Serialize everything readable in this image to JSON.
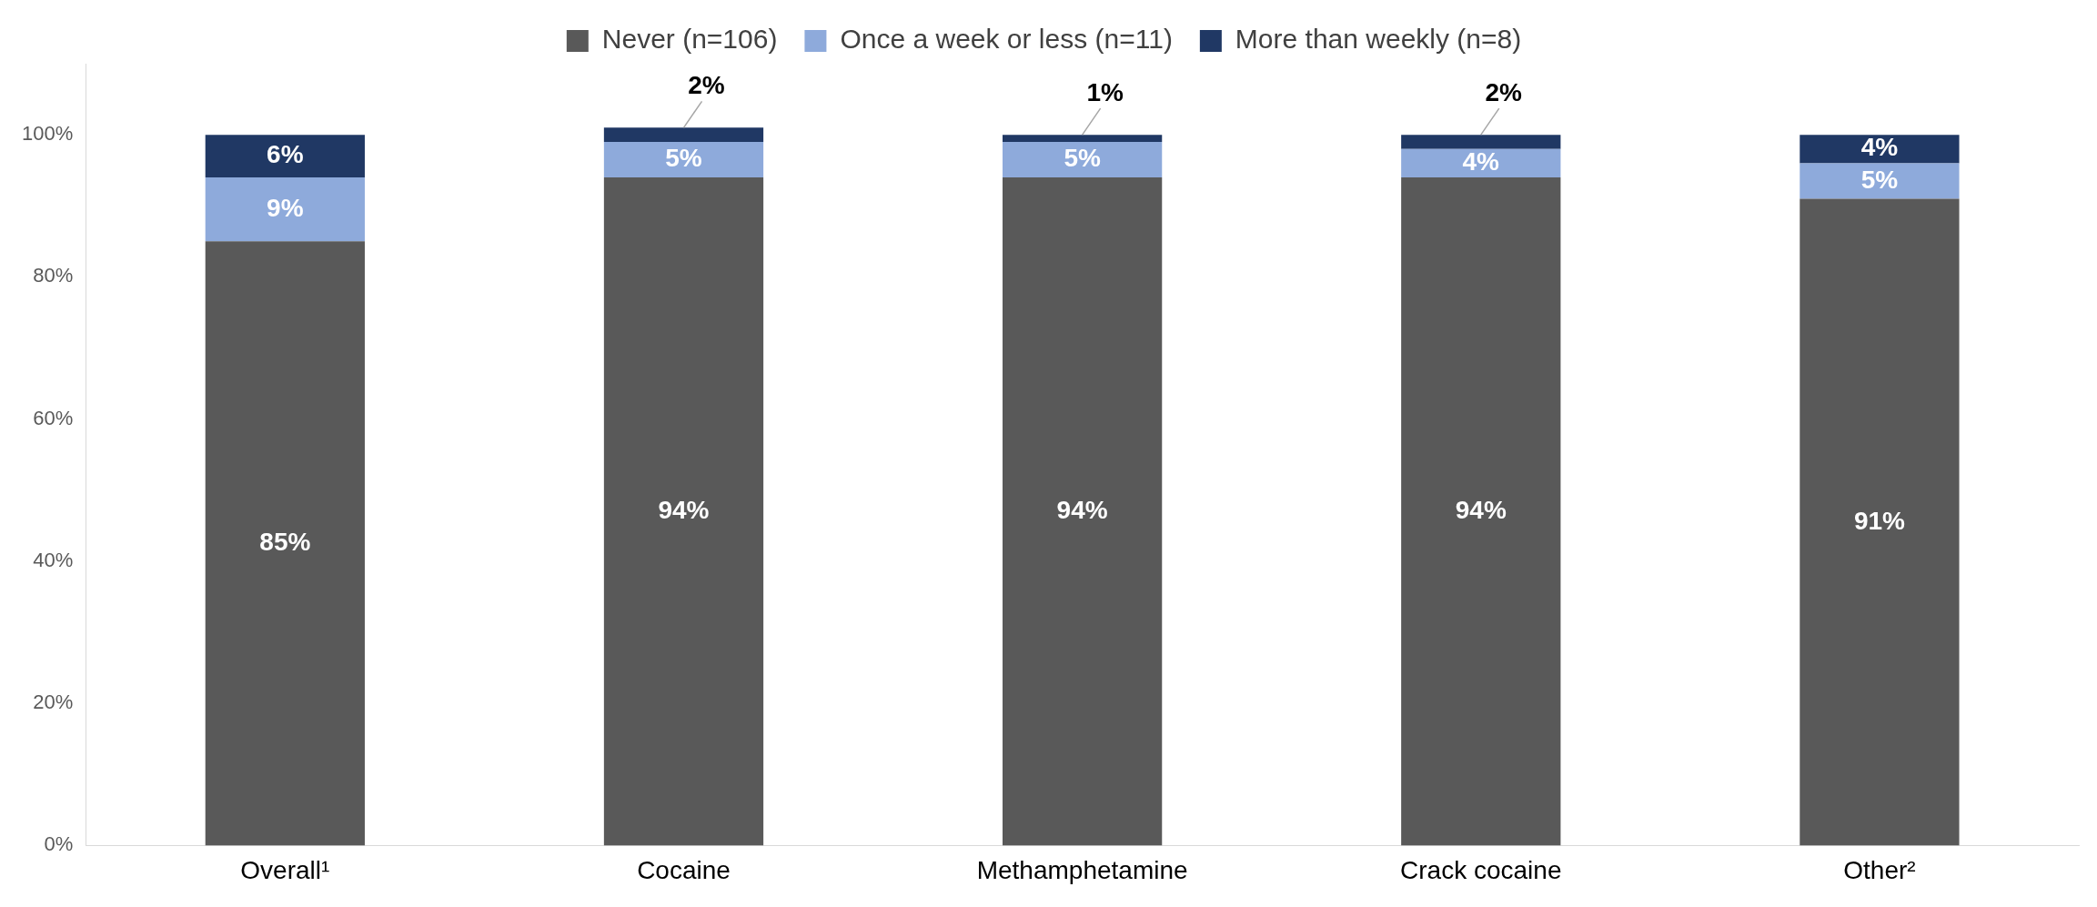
{
  "chart_data": {
    "type": "bar",
    "stacked": true,
    "categories": [
      "Overall¹",
      "Cocaine",
      "Methamphetamine",
      "Crack cocaine",
      "Other²"
    ],
    "series": [
      {
        "name": "Never (n=106)",
        "color": "#595959",
        "values": [
          85,
          94,
          94,
          94,
          91
        ],
        "value_labels": [
          "85%",
          "94%",
          "94%",
          "94%",
          "91%"
        ]
      },
      {
        "name": "Once a week or less (n=11)",
        "color": "#8eaadb",
        "values": [
          9,
          5,
          5,
          4,
          5
        ],
        "value_labels": [
          "9%",
          "5%",
          "5%",
          "4%",
          "5%"
        ]
      },
      {
        "name": "More than weekly (n=8)",
        "color": "#203864",
        "values": [
          6,
          2,
          1,
          2,
          4
        ],
        "value_labels": [
          "6%",
          "2%",
          "1%",
          "2%",
          "4%"
        ]
      }
    ],
    "ylim": [
      0,
      110
    ],
    "yticks": [
      {
        "value": 0,
        "label": "0%"
      },
      {
        "value": 20,
        "label": "20%"
      },
      {
        "value": 40,
        "label": "40%"
      },
      {
        "value": 60,
        "label": "60%"
      },
      {
        "value": 80,
        "label": "80%"
      },
      {
        "value": 100,
        "label": "100%"
      }
    ],
    "grid": false,
    "legend": "top"
  }
}
